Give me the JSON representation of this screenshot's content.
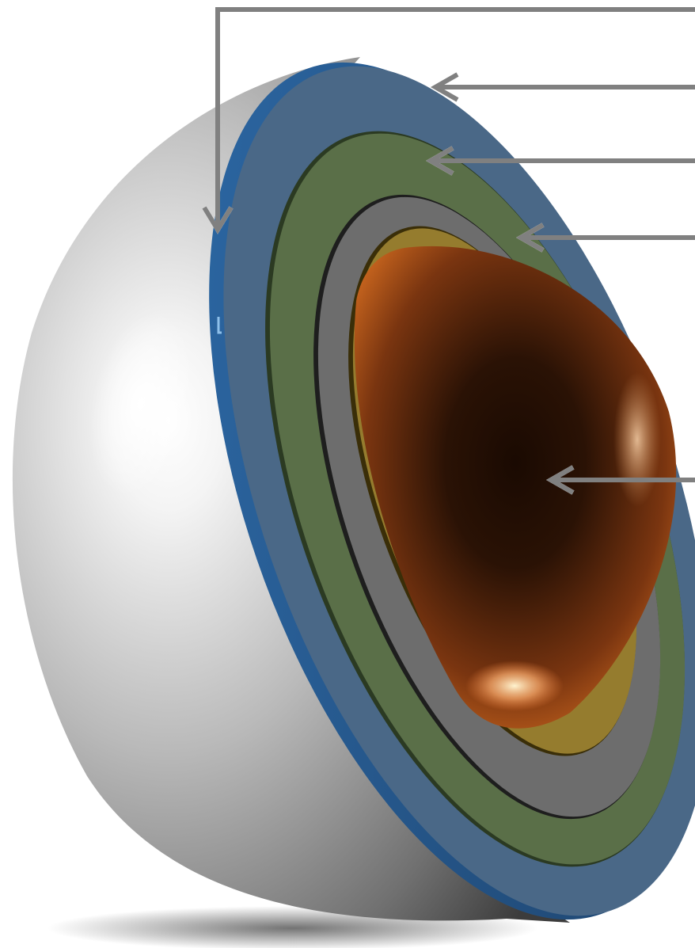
{
  "diagram": {
    "kind": "layered hemisphere cutaway with callout arrows",
    "layers": [
      {
        "id": "shell",
        "color": "#c8c8c8",
        "icon": "shell-layer-icon"
      },
      {
        "id": "blue-ring",
        "color": "#4a6a8a",
        "icon": "blue-layer-icon"
      },
      {
        "id": "green-ring",
        "color": "#5a7048",
        "icon": "green-layer-icon"
      },
      {
        "id": "gray-ring",
        "color": "#6e6e6e",
        "icon": "gray-layer-icon"
      },
      {
        "id": "gold-ring",
        "color": "#9a8030",
        "icon": "gold-layer-icon"
      },
      {
        "id": "core",
        "color": "#b85a1a",
        "icon": "core-layer-icon"
      }
    ],
    "arrow_color": "#808080",
    "callout_count": 5
  }
}
